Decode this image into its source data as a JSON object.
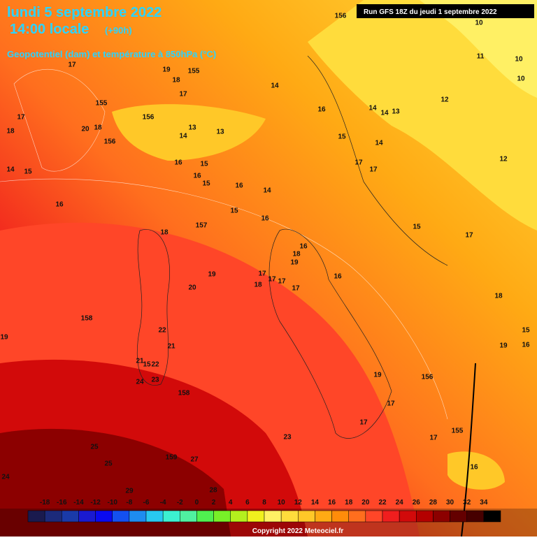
{
  "header": {
    "date": "lundi 5 septembre 2022",
    "time": "14:00 locale",
    "lead": "(+90h)",
    "subtitle": "Geopotentiel (dam) et température à 850hPa (°C)",
    "run": "Run GFS 18Z du jeudi 1 septembre 2022"
  },
  "map_labels": [
    "17",
    "19",
    "155",
    "18",
    "17",
    "14",
    "155",
    "156",
    "17",
    "18",
    "20",
    "18",
    "156",
    "13",
    "13",
    "14",
    "14",
    "15",
    "16",
    "15",
    "16",
    "15",
    "16",
    "14",
    "16",
    "15",
    "16",
    "157",
    "18",
    "16",
    "18",
    "19",
    "19",
    "17",
    "17",
    "17",
    "18",
    "20",
    "17",
    "16",
    "158",
    "22",
    "21",
    "21",
    "15",
    "22",
    "24",
    "23",
    "158",
    "19",
    "156",
    "17",
    "17",
    "23",
    "25",
    "159",
    "27",
    "25",
    "16",
    "28",
    "29",
    "24",
    "15",
    "16",
    "19",
    "18",
    "17",
    "15",
    "156",
    "10",
    "11",
    "10",
    "10",
    "12",
    "14",
    "13",
    "14",
    "16",
    "15",
    "14",
    "17",
    "17",
    "12",
    "17",
    "155",
    "19"
  ],
  "colorbar": {
    "ticks": [
      -18,
      -16,
      -14,
      -12,
      -10,
      -8,
      -6,
      -4,
      -2,
      0,
      2,
      4,
      6,
      8,
      10,
      12,
      14,
      16,
      18,
      20,
      22,
      24,
      26,
      28,
      30,
      32,
      34
    ],
    "colors": [
      "#1a1a4e",
      "#1c2a7a",
      "#1a3aa8",
      "#1a1ad0",
      "#0a0af0",
      "#1450f0",
      "#1e8cf0",
      "#28c8f0",
      "#3cf0d0",
      "#50f0a0",
      "#50f050",
      "#78f028",
      "#b4f01e",
      "#f0f01e",
      "#fff064",
      "#ffdc3c",
      "#ffc828",
      "#ffaa14",
      "#ff8c0a",
      "#ff6e1e",
      "#ff4628",
      "#f01e1e",
      "#d20a0a",
      "#b40000",
      "#8c0000",
      "#640000",
      "#460000",
      "#000000"
    ],
    "copyright": "Copyright 2022 Meteociel.fr"
  }
}
